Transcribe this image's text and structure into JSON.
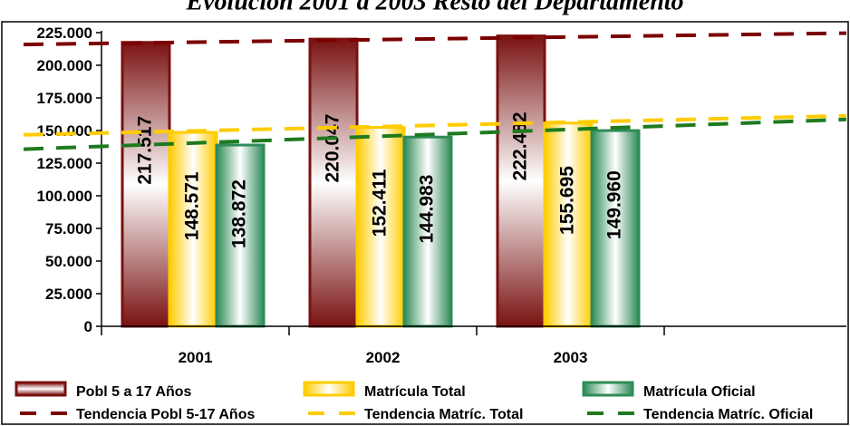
{
  "chart_data": {
    "type": "bar",
    "title": "Evolución 2001 a 2003 Resto del Departamento",
    "categories": [
      "2001",
      "2002",
      "2003"
    ],
    "series": [
      {
        "name": "Pobl 5 a 17 Años",
        "values": [
          217517,
          220047,
          222482
        ],
        "labels": [
          "217.517",
          "220.047",
          "222.482"
        ],
        "color": "#7b1010"
      },
      {
        "name": "Matrícula Total",
        "values": [
          148571,
          152411,
          155695
        ],
        "labels": [
          "148.571",
          "152.411",
          "155.695"
        ],
        "color": "#ffcc00"
      },
      {
        "name": "Matrícula Oficial",
        "values": [
          138872,
          144983,
          149960
        ],
        "labels": [
          "138.872",
          "144.983",
          "149.960"
        ],
        "color": "#2e8b57"
      }
    ],
    "trendlines": [
      {
        "name": "Tendencia Pobl 5-17 Años",
        "start": 215900,
        "end": 224600,
        "color": "#7b0000"
      },
      {
        "name": "Tendencia Matríc. Total",
        "start": 146700,
        "end": 161300,
        "color": "#ffcc00"
      },
      {
        "name": "Tendencia Matríc. Oficial",
        "start": 135700,
        "end": 158500,
        "color": "#1f7a1f"
      }
    ],
    "ylim": [
      0,
      225000
    ],
    "yticks": [
      "0",
      "25.000",
      "50.000",
      "75.000",
      "100.000",
      "125.000",
      "150.000",
      "175.000",
      "200.000",
      "225.000"
    ],
    "grid": false,
    "legend_position": "bottom"
  }
}
